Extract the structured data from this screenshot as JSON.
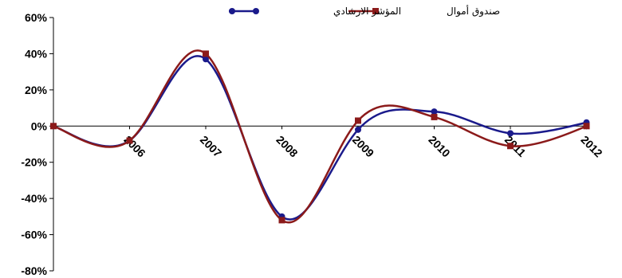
{
  "chart_data": {
    "type": "line",
    "x": [
      "",
      "2006",
      "2007",
      "2008",
      "2009",
      "2010",
      "2011",
      "2012"
    ],
    "series": [
      {
        "name": "صندوق أموال",
        "values": [
          0,
          -8,
          40,
          -52,
          3,
          5,
          -11,
          0
        ],
        "color": "#8b1a1a",
        "marker": "square"
      },
      {
        "name": "المؤشر الارشادي",
        "values": [
          0,
          -8,
          37,
          -50,
          -2,
          8,
          -4,
          2
        ],
        "color": "#1a1a8b",
        "marker": "circle"
      }
    ],
    "ylim": [
      -80,
      60
    ],
    "yticks": [
      60,
      40,
      20,
      0,
      -20,
      -40,
      -60,
      -80
    ],
    "ytick_labels": [
      "60%",
      "40%",
      "20%",
      "0%",
      "-20%",
      "-40%",
      "-60%",
      "-80%"
    ],
    "legend_position": "top",
    "grid": false
  }
}
